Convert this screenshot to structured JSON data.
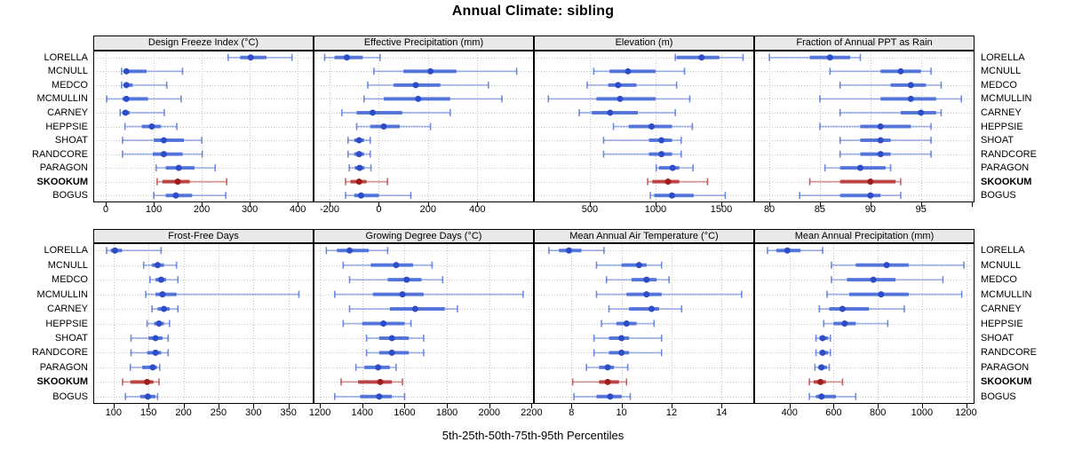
{
  "title": "Annual Climate: sibling",
  "caption": "5th-25th-50th-75th-95th Percentiles",
  "percentiles": [
    "5th",
    "25th",
    "50th",
    "75th",
    "95th"
  ],
  "stations": [
    "LORELLA",
    "MCNULL",
    "MEDCO",
    "MCMULLIN",
    "CARNEY",
    "HEPPSIE",
    "SHOAT",
    "RANDCORE",
    "PARAGON",
    "SKOOKUM",
    "BOGUS"
  ],
  "highlight_station": "SKOOKUM",
  "colors": {
    "series": "#4166d8",
    "series_dot": "#2c4cc8",
    "highlight": "#b83030",
    "highlight_dot": "#9e1c1c",
    "grid": "#c4c4c4",
    "strip_bg": "#e9e9e9",
    "border": "#000000"
  },
  "layout_hint": {
    "rows": 2,
    "cols": 4,
    "grid": "dotted",
    "station_labels": "both-sides"
  },
  "chart_data": [
    {
      "type": "interval-dotplot",
      "title": "Design Freeze Index (°C)",
      "xlim": [
        -26,
        433
      ],
      "ticks": [
        0,
        100,
        200,
        300,
        400
      ],
      "series": [
        {
          "name": "LORELLA",
          "values": [
            255,
            280,
            302,
            335,
            388
          ]
        },
        {
          "name": "MCNULL",
          "values": [
            33,
            38,
            43,
            85,
            160
          ]
        },
        {
          "name": "MEDCO",
          "values": [
            33,
            38,
            43,
            56,
            127
          ]
        },
        {
          "name": "MCMULLIN",
          "values": [
            2,
            35,
            43,
            88,
            157
          ]
        },
        {
          "name": "CARNEY",
          "values": [
            30,
            35,
            41,
            50,
            122
          ]
        },
        {
          "name": "HEPPSIE",
          "values": [
            40,
            75,
            96,
            115,
            148
          ]
        },
        {
          "name": "SHOAT",
          "values": [
            35,
            100,
            121,
            163,
            200
          ]
        },
        {
          "name": "RANDCORE",
          "values": [
            35,
            98,
            121,
            160,
            201
          ]
        },
        {
          "name": "PARAGON",
          "values": [
            105,
            125,
            152,
            185,
            228
          ]
        },
        {
          "name": "SKOOKUM",
          "values": [
            107,
            118,
            150,
            175,
            252
          ]
        },
        {
          "name": "BOGUS",
          "values": [
            100,
            125,
            146,
            180,
            250
          ]
        }
      ]
    },
    {
      "type": "interval-dotplot",
      "title": "Effective Precipitation (mm)",
      "xlim": [
        -265,
        630
      ],
      "ticks": [
        -200,
        0,
        200,
        400
      ],
      "series": [
        {
          "name": "LORELLA",
          "values": [
            -220,
            -180,
            -130,
            -65,
            5
          ]
        },
        {
          "name": "MCNULL",
          "values": [
            -20,
            100,
            210,
            315,
            560
          ]
        },
        {
          "name": "MEDCO",
          "values": [
            -45,
            60,
            150,
            250,
            445
          ]
        },
        {
          "name": "MCMULLIN",
          "values": [
            -60,
            20,
            160,
            290,
            500
          ]
        },
        {
          "name": "CARNEY",
          "values": [
            -150,
            -90,
            -25,
            95,
            290
          ]
        },
        {
          "name": "HEPPSIE",
          "values": [
            -90,
            -35,
            20,
            85,
            210
          ]
        },
        {
          "name": "SHOAT",
          "values": [
            -125,
            -100,
            -80,
            -60,
            -35
          ]
        },
        {
          "name": "RANDCORE",
          "values": [
            -125,
            -100,
            -80,
            -60,
            -35
          ]
        },
        {
          "name": "PARAGON",
          "values": [
            -120,
            -98,
            -78,
            -58,
            -32
          ]
        },
        {
          "name": "SKOOKUM",
          "values": [
            -135,
            -115,
            -80,
            -50,
            35
          ]
        },
        {
          "name": "BOGUS",
          "values": [
            -135,
            -100,
            -72,
            0,
            130
          ]
        }
      ]
    },
    {
      "type": "interval-dotplot",
      "title": "Elevation (m)",
      "xlim": [
        75,
        1750
      ],
      "ticks": [
        500,
        1000,
        1500
      ],
      "series": [
        {
          "name": "LORELLA",
          "values": [
            1150,
            1160,
            1350,
            1485,
            1665
          ]
        },
        {
          "name": "MCNULL",
          "values": [
            530,
            650,
            790,
            1000,
            1220
          ]
        },
        {
          "name": "MEDCO",
          "values": [
            480,
            640,
            715,
            855,
            1160
          ]
        },
        {
          "name": "MCMULLIN",
          "values": [
            185,
            550,
            730,
            1000,
            1260
          ]
        },
        {
          "name": "CARNEY",
          "values": [
            420,
            515,
            655,
            865,
            1150
          ]
        },
        {
          "name": "HEPPSIE",
          "values": [
            680,
            795,
            970,
            1125,
            1280
          ]
        },
        {
          "name": "SHOAT",
          "values": [
            605,
            950,
            1045,
            1125,
            1195
          ]
        },
        {
          "name": "RANDCORE",
          "values": [
            605,
            950,
            1045,
            1125,
            1195
          ]
        },
        {
          "name": "PARAGON",
          "values": [
            1005,
            1025,
            1130,
            1180,
            1285
          ]
        },
        {
          "name": "SKOOKUM",
          "values": [
            940,
            975,
            1095,
            1180,
            1395
          ]
        },
        {
          "name": "BOGUS",
          "values": [
            960,
            990,
            1125,
            1290,
            1530
          ]
        }
      ]
    },
    {
      "type": "interval-dotplot",
      "title": "Fraction of Annual PPT as Rain",
      "xlim": [
        78.5,
        100.3
      ],
      "ticks": [
        80,
        85,
        90,
        95,
        100
      ],
      "tick_labels": [
        "80",
        "85",
        "90",
        "95",
        ""
      ],
      "series": [
        {
          "name": "LORELLA",
          "values": [
            80,
            84,
            86,
            88,
            89
          ]
        },
        {
          "name": "MCNULL",
          "values": [
            86,
            91,
            93,
            95,
            96
          ]
        },
        {
          "name": "MEDCO",
          "values": [
            87,
            92,
            94,
            95.5,
            97
          ]
        },
        {
          "name": "MCMULLIN",
          "values": [
            85,
            91,
            94,
            96.5,
            99
          ]
        },
        {
          "name": "CARNEY",
          "values": [
            87,
            93,
            95,
            96.5,
            97
          ]
        },
        {
          "name": "HEPPSIE",
          "values": [
            85,
            89,
            91,
            94,
            96
          ]
        },
        {
          "name": "SHOAT",
          "values": [
            87,
            89,
            91,
            92,
            96
          ]
        },
        {
          "name": "RANDCORE",
          "values": [
            87,
            89,
            91,
            92,
            96
          ]
        },
        {
          "name": "PARAGON",
          "values": [
            85.5,
            87,
            89,
            91.5,
            92
          ]
        },
        {
          "name": "SKOOKUM",
          "values": [
            84,
            87,
            90,
            92.5,
            93
          ]
        },
        {
          "name": "BOGUS",
          "values": [
            83,
            87,
            90,
            91,
            93
          ]
        }
      ]
    },
    {
      "type": "interval-dotplot",
      "title": "Frost-Free Days",
      "xlim": [
        71,
        386
      ],
      "ticks": [
        100,
        150,
        200,
        250,
        300,
        350
      ],
      "series": [
        {
          "name": "LORELLA",
          "values": [
            90,
            96,
            102,
            112,
            168
          ]
        },
        {
          "name": "MCNULL",
          "values": [
            143,
            155,
            163,
            172,
            190
          ]
        },
        {
          "name": "MEDCO",
          "values": [
            152,
            160,
            168,
            175,
            192
          ]
        },
        {
          "name": "MCMULLIN",
          "values": [
            146,
            160,
            170,
            190,
            365
          ]
        },
        {
          "name": "CARNEY",
          "values": [
            155,
            163,
            172,
            180,
            192
          ]
        },
        {
          "name": "HEPPSIE",
          "values": [
            148,
            158,
            165,
            172,
            180
          ]
        },
        {
          "name": "SHOAT",
          "values": [
            125,
            150,
            160,
            170,
            178
          ]
        },
        {
          "name": "RANDCORE",
          "values": [
            125,
            148,
            160,
            168,
            178
          ]
        },
        {
          "name": "PARAGON",
          "values": [
            124,
            141,
            156,
            162,
            166
          ]
        },
        {
          "name": "SKOOKUM",
          "values": [
            113,
            124,
            148,
            157,
            165
          ]
        },
        {
          "name": "BOGUS",
          "values": [
            117,
            138,
            149,
            160,
            163
          ]
        }
      ]
    },
    {
      "type": "interval-dotplot",
      "title": "Growing Degree Days (°C)",
      "xlim": [
        1170,
        2211
      ],
      "ticks": [
        1200,
        1400,
        1600,
        1800,
        2000,
        2200
      ],
      "series": [
        {
          "name": "LORELLA",
          "values": [
            1230,
            1280,
            1340,
            1430,
            1520
          ]
        },
        {
          "name": "MCNULL",
          "values": [
            1310,
            1440,
            1560,
            1640,
            1730
          ]
        },
        {
          "name": "MEDCO",
          "values": [
            1340,
            1520,
            1610,
            1680,
            1780
          ]
        },
        {
          "name": "MCMULLIN",
          "values": [
            1270,
            1450,
            1590,
            1690,
            2160
          ]
        },
        {
          "name": "CARNEY",
          "values": [
            1340,
            1530,
            1650,
            1790,
            1850
          ]
        },
        {
          "name": "HEPPSIE",
          "values": [
            1310,
            1400,
            1500,
            1600,
            1630
          ]
        },
        {
          "name": "SHOAT",
          "values": [
            1420,
            1480,
            1540,
            1620,
            1690
          ]
        },
        {
          "name": "RANDCORE",
          "values": [
            1420,
            1480,
            1540,
            1620,
            1690
          ]
        },
        {
          "name": "PARAGON",
          "values": [
            1370,
            1410,
            1475,
            1530,
            1560
          ]
        },
        {
          "name": "SKOOKUM",
          "values": [
            1300,
            1380,
            1485,
            1540,
            1590
          ]
        },
        {
          "name": "BOGUS",
          "values": [
            1270,
            1390,
            1480,
            1540,
            1600
          ]
        }
      ]
    },
    {
      "type": "interval-dotplot",
      "title": "Mean Annual Air Temperature (°C)",
      "xlim": [
        6.5,
        15.3
      ],
      "ticks": [
        8,
        10,
        12,
        14
      ],
      "series": [
        {
          "name": "LORELLA",
          "values": [
            7.1,
            7.5,
            7.9,
            8.4,
            9.3
          ]
        },
        {
          "name": "MCNULL",
          "values": [
            9.0,
            10.0,
            10.7,
            11.0,
            11.6
          ]
        },
        {
          "name": "MEDCO",
          "values": [
            9.4,
            10.4,
            11.0,
            11.4,
            11.9
          ]
        },
        {
          "name": "MCMULLIN",
          "values": [
            9.0,
            10.2,
            11.0,
            11.6,
            14.8
          ]
        },
        {
          "name": "CARNEY",
          "values": [
            9.5,
            10.3,
            11.2,
            11.5,
            12.4
          ]
        },
        {
          "name": "HEPPSIE",
          "values": [
            9.2,
            9.8,
            10.2,
            10.6,
            11.3
          ]
        },
        {
          "name": "SHOAT",
          "values": [
            8.9,
            9.5,
            10.0,
            10.3,
            11.6
          ]
        },
        {
          "name": "RANDCORE",
          "values": [
            8.9,
            9.5,
            10.0,
            10.3,
            11.6
          ]
        },
        {
          "name": "PARAGON",
          "values": [
            8.6,
            9.1,
            9.45,
            9.7,
            10.25
          ]
        },
        {
          "name": "SKOOKUM",
          "values": [
            8.05,
            9.1,
            9.45,
            9.9,
            10.2
          ]
        },
        {
          "name": "BOGUS",
          "values": [
            8.1,
            9.0,
            9.55,
            10.0,
            10.35
          ]
        }
      ]
    },
    {
      "type": "interval-dotplot",
      "title": "Mean Annual Precipitation (mm)",
      "xlim": [
        240,
        1238
      ],
      "ticks": [
        400,
        600,
        800,
        1000,
        1200
      ],
      "series": [
        {
          "name": "LORELLA",
          "values": [
            300,
            340,
            390,
            450,
            550
          ]
        },
        {
          "name": "MCNULL",
          "values": [
            590,
            700,
            840,
            940,
            1190
          ]
        },
        {
          "name": "MEDCO",
          "values": [
            590,
            660,
            780,
            880,
            1095
          ]
        },
        {
          "name": "MCMULLIN",
          "values": [
            570,
            670,
            815,
            940,
            1180
          ]
        },
        {
          "name": "CARNEY",
          "values": [
            535,
            580,
            640,
            760,
            920
          ]
        },
        {
          "name": "HEPPSIE",
          "values": [
            555,
            600,
            650,
            700,
            845
          ]
        },
        {
          "name": "SHOAT",
          "values": [
            520,
            535,
            550,
            575,
            585
          ]
        },
        {
          "name": "RANDCORE",
          "values": [
            520,
            535,
            550,
            575,
            585
          ]
        },
        {
          "name": "PARAGON",
          "values": [
            515,
            530,
            545,
            570,
            580
          ]
        },
        {
          "name": "SKOOKUM",
          "values": [
            490,
            510,
            540,
            565,
            640
          ]
        },
        {
          "name": "BOGUS",
          "values": [
            490,
            520,
            545,
            610,
            700
          ]
        }
      ]
    }
  ]
}
